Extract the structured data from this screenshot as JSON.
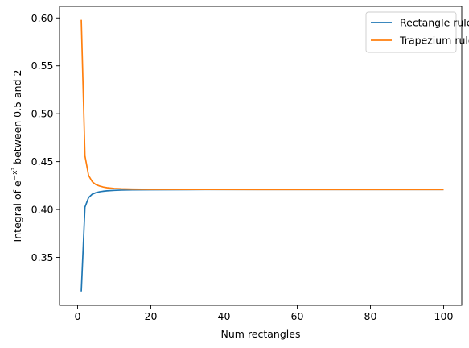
{
  "chart_data": {
    "type": "line",
    "title": "",
    "xlabel": "Num rectangles",
    "ylabel": {
      "prefix": "Integral of ",
      "base": "e",
      "exponent": "−x²",
      "suffix": " between 0.5 and 2"
    },
    "xlim": [
      -4.95,
      104.95
    ],
    "ylim": [
      0.3,
      0.612
    ],
    "xticks": [
      0,
      20,
      40,
      60,
      80,
      100
    ],
    "yticks": [
      0.35,
      0.4,
      0.45,
      0.5,
      0.55,
      0.6
    ],
    "xtick_labels": [
      "0",
      "20",
      "40",
      "60",
      "80",
      "100"
    ],
    "ytick_labels": [
      "0.35",
      "0.40",
      "0.45",
      "0.50",
      "0.55",
      "0.60"
    ],
    "grid": false,
    "legend_position": "top-right",
    "series": [
      {
        "name": "Rectangle rule",
        "color": "#1f77b4",
        "x": [
          1,
          2,
          3,
          4,
          5,
          6,
          7,
          8,
          10,
          12,
          15,
          20,
          30,
          50,
          100
        ],
        "y": [
          0.3145,
          0.4025,
          0.4125,
          0.416,
          0.4176,
          0.4185,
          0.4191,
          0.4195,
          0.42,
          0.4203,
          0.4205,
          0.4207,
          0.4208,
          0.4209,
          0.4209
        ]
      },
      {
        "name": "Trapezium rule",
        "color": "#ff7f0e",
        "x": [
          1,
          2,
          3,
          4,
          5,
          6,
          7,
          8,
          10,
          12,
          15,
          20,
          30,
          50,
          100
        ],
        "y": [
          0.598,
          0.456,
          0.4355,
          0.429,
          0.426,
          0.4245,
          0.4235,
          0.4228,
          0.422,
          0.4216,
          0.4213,
          0.4211,
          0.421,
          0.4209,
          0.4209
        ]
      }
    ]
  }
}
